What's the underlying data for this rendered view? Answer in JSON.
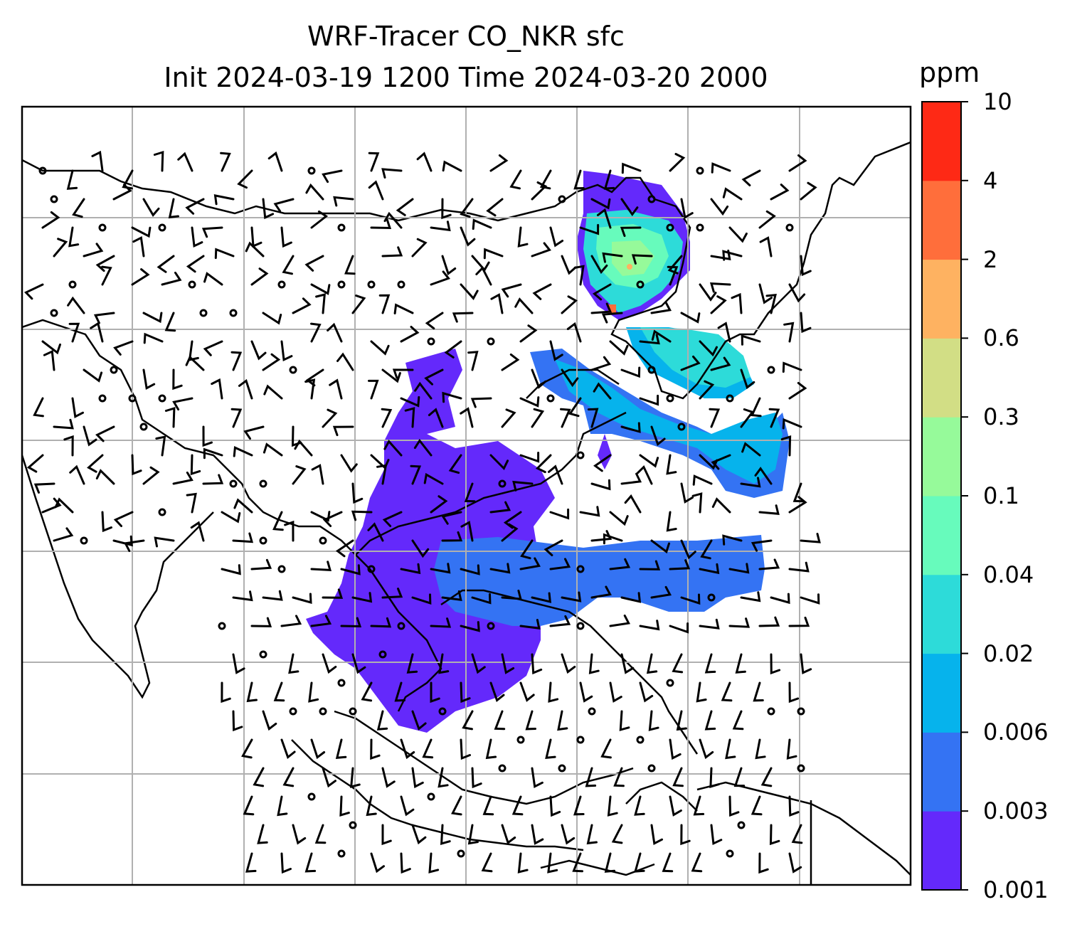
{
  "title": {
    "line1": "WRF-Tracer CO_NKR sfc",
    "line2": "Init 2024-03-19 1200 Time 2024-03-20 2000"
  },
  "colorbar": {
    "unit": "ppm",
    "levels": [
      "0.001",
      "0.003",
      "0.006",
      "0.02",
      "0.04",
      "0.1",
      "0.3",
      "0.6",
      "2",
      "4",
      "10"
    ],
    "colors": [
      "#6429fb",
      "#3473f3",
      "#06b3ec",
      "#2ddbd9",
      "#67fbbc",
      "#96fa9a",
      "#d2de85",
      "#feb261",
      "#ff6e3b",
      "#fe2915"
    ]
  },
  "map": {
    "coastline_color": "#000000",
    "gridline_color": "#b0b0b0",
    "gridlines": true,
    "wind_barbs": true,
    "calm_wind_markers": true
  }
}
